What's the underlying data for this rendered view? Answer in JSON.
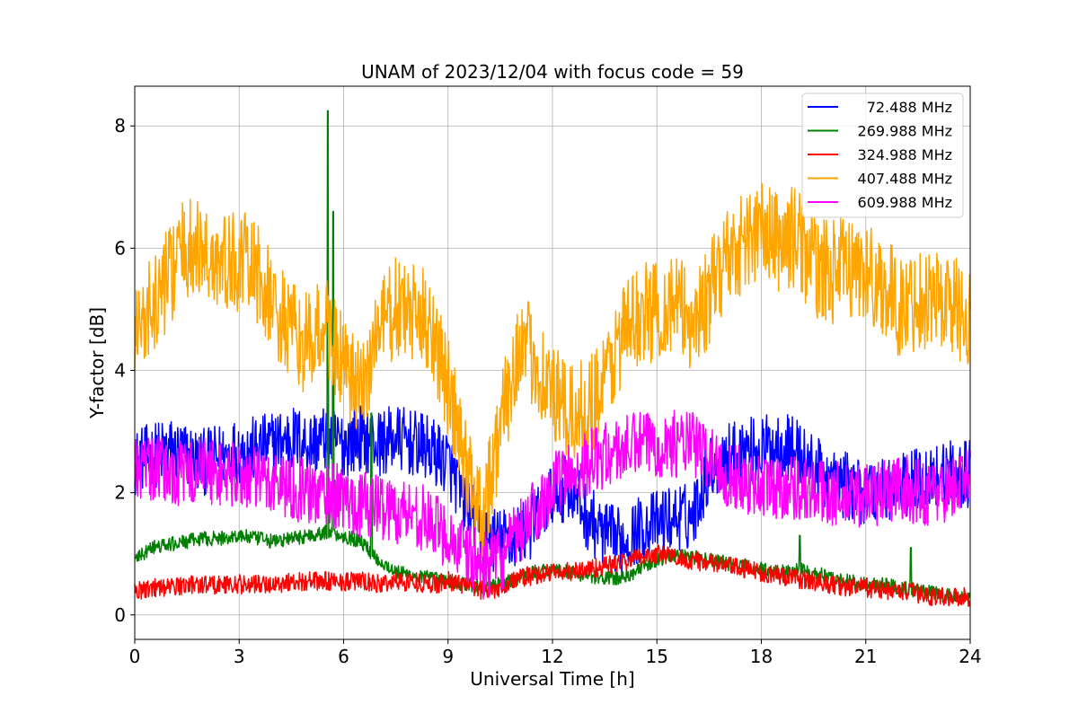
{
  "chart_data": {
    "type": "line",
    "title": "UNAM of 2023/12/04 with focus code = 59",
    "xlabel": "Universal Time [h]",
    "ylabel": "Y-factor [dB]",
    "xlim": [
      0,
      24
    ],
    "ylim": [
      -0.4,
      8.65
    ],
    "xticks": [
      0,
      3,
      6,
      9,
      12,
      15,
      18,
      21,
      24
    ],
    "yticks": [
      0,
      2,
      4,
      6,
      8
    ],
    "grid": true,
    "legend_position": "top-right",
    "series": [
      {
        "name": "72.488 MHz",
        "color": "#0000ff",
        "x": [
          0,
          0.5,
          1,
          1.5,
          2,
          2.5,
          3,
          3.5,
          4,
          4.5,
          5,
          5.5,
          6,
          6.5,
          7,
          7.5,
          8,
          8.5,
          9,
          9.5,
          10,
          10.5,
          11,
          11.5,
          12,
          12.5,
          13,
          13.5,
          14,
          14.5,
          15,
          15.5,
          16,
          16.5,
          17,
          17.5,
          18,
          18.5,
          19,
          19.5,
          20,
          20.5,
          21,
          21.5,
          22,
          22.5,
          23,
          23.5,
          24
        ],
        "y": [
          2.5,
          2.6,
          2.7,
          2.6,
          2.5,
          2.6,
          2.7,
          2.7,
          2.8,
          2.9,
          2.8,
          2.9,
          2.8,
          2.9,
          2.8,
          2.9,
          2.8,
          2.7,
          2.5,
          1.8,
          1.3,
          1.2,
          1.3,
          1.5,
          2.0,
          2.1,
          1.6,
          1.3,
          1.2,
          1.4,
          1.5,
          1.6,
          1.6,
          2.4,
          2.6,
          2.7,
          2.7,
          2.8,
          2.7,
          2.4,
          2.2,
          2.1,
          2.0,
          2.1,
          2.1,
          2.2,
          2.3,
          2.3,
          2.3
        ],
        "noise": 0.55
      },
      {
        "name": "269.988 MHz",
        "color": "#008000",
        "x": [
          0,
          0.5,
          1,
          1.5,
          2,
          2.5,
          3,
          3.5,
          4,
          4.5,
          5,
          5.5,
          6,
          6.5,
          7,
          7.5,
          8,
          8.5,
          9,
          9.5,
          10,
          10.5,
          11,
          11.5,
          12,
          12.5,
          13,
          13.5,
          14,
          14.5,
          15,
          15.5,
          16,
          16.5,
          17,
          17.5,
          18,
          18.5,
          19,
          19.5,
          20,
          20.5,
          21,
          21.5,
          22,
          22.5,
          23,
          23.5,
          24
        ],
        "y": [
          0.9,
          1.1,
          1.15,
          1.2,
          1.25,
          1.25,
          1.3,
          1.25,
          1.2,
          1.25,
          1.3,
          1.35,
          1.3,
          1.2,
          0.9,
          0.7,
          0.65,
          0.6,
          0.55,
          0.5,
          0.45,
          0.5,
          0.6,
          0.7,
          0.75,
          0.7,
          0.65,
          0.6,
          0.6,
          0.75,
          0.9,
          1.0,
          0.95,
          0.9,
          0.85,
          0.8,
          0.75,
          0.7,
          0.75,
          0.7,
          0.6,
          0.55,
          0.5,
          0.5,
          0.45,
          0.4,
          0.35,
          0.3,
          0.3
        ],
        "noise": 0.12,
        "spikes": [
          [
            5.55,
            8.25
          ],
          [
            5.7,
            6.6
          ],
          [
            6.8,
            3.3
          ],
          [
            19.1,
            1.3
          ],
          [
            22.3,
            1.1
          ]
        ]
      },
      {
        "name": "324.988 MHz",
        "color": "#ff0000",
        "x": [
          0,
          0.5,
          1,
          1.5,
          2,
          2.5,
          3,
          3.5,
          4,
          4.5,
          5,
          5.5,
          6,
          6.5,
          7,
          7.5,
          8,
          8.5,
          9,
          9.5,
          10,
          10.5,
          11,
          11.5,
          12,
          12.5,
          13,
          13.5,
          14,
          14.5,
          15,
          15.5,
          16,
          16.5,
          17,
          17.5,
          18,
          18.5,
          19,
          19.5,
          20,
          20.5,
          21,
          21.5,
          22,
          22.5,
          23,
          23.5,
          24
        ],
        "y": [
          0.4,
          0.45,
          0.45,
          0.5,
          0.5,
          0.5,
          0.5,
          0.5,
          0.5,
          0.55,
          0.55,
          0.55,
          0.55,
          0.55,
          0.5,
          0.55,
          0.55,
          0.5,
          0.55,
          0.5,
          0.4,
          0.45,
          0.6,
          0.65,
          0.7,
          0.7,
          0.75,
          0.8,
          0.85,
          0.95,
          1.0,
          0.95,
          0.9,
          0.85,
          0.8,
          0.75,
          0.7,
          0.65,
          0.6,
          0.55,
          0.5,
          0.45,
          0.45,
          0.4,
          0.4,
          0.35,
          0.3,
          0.3,
          0.3
        ],
        "noise": 0.16
      },
      {
        "name": "407.488 MHz",
        "color": "#ffa500",
        "x": [
          0,
          0.5,
          1,
          1.5,
          2,
          2.5,
          3,
          3.5,
          4,
          4.5,
          5,
          5.5,
          6,
          6.5,
          7,
          7.5,
          8,
          8.5,
          9,
          9.5,
          10,
          10.5,
          11,
          11.5,
          12,
          12.5,
          13,
          13.5,
          14,
          14.5,
          15,
          15.5,
          16,
          16.5,
          17,
          17.5,
          18,
          18.5,
          19,
          19.5,
          20,
          20.5,
          21,
          21.5,
          22,
          22.5,
          23,
          23.5,
          24
        ],
        "y": [
          4.6,
          5.0,
          5.6,
          6.0,
          5.9,
          5.7,
          5.8,
          5.6,
          5.0,
          4.6,
          4.4,
          4.8,
          4.0,
          3.6,
          4.7,
          5.0,
          4.9,
          4.8,
          3.7,
          2.4,
          1.7,
          3.0,
          4.4,
          4.2,
          3.6,
          3.2,
          3.4,
          3.8,
          4.6,
          4.9,
          5.0,
          5.1,
          4.8,
          5.2,
          5.9,
          6.1,
          6.3,
          6.1,
          6.2,
          5.7,
          5.6,
          5.7,
          5.6,
          5.4,
          5.0,
          5.2,
          5.2,
          5.1,
          4.8
        ],
        "noise": 0.85
      },
      {
        "name": "609.988 MHz",
        "color": "#ff00ff",
        "x": [
          0,
          0.5,
          1,
          1.5,
          2,
          2.5,
          3,
          3.5,
          4,
          4.5,
          5,
          5.5,
          6,
          6.5,
          7,
          7.5,
          8,
          8.5,
          9,
          9.5,
          10,
          10.5,
          11,
          11.5,
          12,
          12.5,
          13,
          13.5,
          14,
          14.5,
          15,
          15.5,
          16,
          16.5,
          17,
          17.5,
          18,
          18.5,
          19,
          19.5,
          20,
          20.5,
          21,
          21.5,
          22,
          22.5,
          23,
          23.5,
          24
        ],
        "y": [
          2.4,
          2.4,
          2.3,
          2.3,
          2.4,
          2.3,
          2.3,
          2.2,
          2.2,
          2.1,
          2.0,
          2.0,
          1.9,
          1.8,
          1.8,
          1.7,
          1.7,
          1.5,
          1.3,
          1.0,
          0.8,
          0.9,
          1.3,
          1.7,
          2.1,
          2.3,
          2.5,
          2.6,
          2.7,
          2.8,
          2.8,
          2.8,
          2.8,
          2.6,
          2.3,
          2.2,
          2.1,
          2.1,
          2.1,
          2.0,
          2.0,
          1.9,
          2.0,
          2.0,
          2.1,
          2.0,
          2.0,
          2.1,
          2.2
        ],
        "noise": 0.55
      }
    ]
  }
}
